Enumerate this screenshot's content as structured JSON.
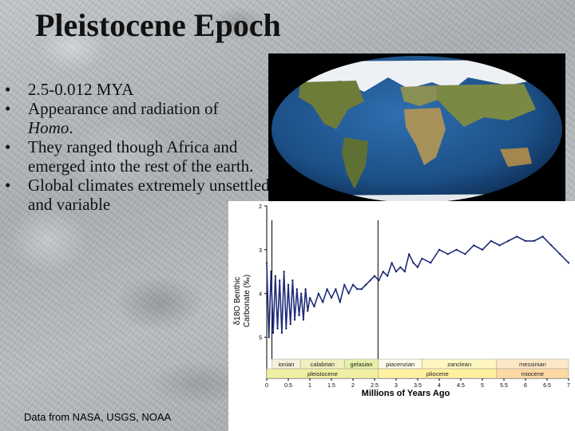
{
  "title": "Pleistocene Epoch",
  "bullets": [
    {
      "text": " 2.5-0.012 MYA"
    },
    {
      "text": " Appearance and radiation of",
      "text2": "Homo",
      "text3": "."
    },
    {
      "text": "They ranged though Africa and emerged into the rest of the earth."
    },
    {
      "text": "Global climates extremely unsettled and variable"
    }
  ],
  "bullet_char": "•",
  "caption": "Data from NASA, USGS, NOAA",
  "globe": {
    "ocean": "#1c4f86",
    "land": "#6e7c3a",
    "ice": "#f2f4f6"
  },
  "chart_data": {
    "type": "line",
    "xlabel": "Millions of Years Ago",
    "ylabel_line1": "δ18O Benthic",
    "ylabel_line2": "Carbonate (‰)",
    "x_ticks": [
      "0",
      "0.5",
      "1",
      "1.5",
      "2",
      "2.5",
      "3",
      "3.5",
      "4",
      "4.5",
      "5",
      "5.5",
      "6",
      "6.5",
      "7"
    ],
    "y_ticks": [
      "2",
      "3",
      "4",
      "5"
    ],
    "xlim": [
      0,
      7
    ],
    "ylim": [
      2,
      5.5
    ],
    "y_inverted": true,
    "vertical_lines": [
      0.12,
      2.58
    ],
    "stages": [
      {
        "name": "ionian",
        "start": 0.126,
        "end": 0.78,
        "color": "#f6f1dc"
      },
      {
        "name": "calabrian",
        "start": 0.78,
        "end": 1.8,
        "color": "#f2efbf"
      },
      {
        "name": "gelasian",
        "start": 1.8,
        "end": 2.59,
        "color": "#e6f0a8"
      },
      {
        "name": "piacenzian",
        "start": 2.59,
        "end": 3.6,
        "color": "#fdfbe6"
      },
      {
        "name": "zanclean",
        "start": 3.6,
        "end": 5.33,
        "color": "#fff7c2"
      },
      {
        "name": "messinian",
        "start": 5.33,
        "end": 7.0,
        "color": "#fde7c6"
      }
    ],
    "epochs": [
      {
        "name": "pleistocene",
        "start": 0.0,
        "end": 2.59,
        "color": "#f0eea3"
      },
      {
        "name": "pliocene",
        "start": 2.59,
        "end": 5.33,
        "color": "#fff0a0"
      },
      {
        "name": "miocene",
        "start": 5.33,
        "end": 7.0,
        "color": "#fcd9a2"
      }
    ],
    "series": [
      {
        "x": [
          0,
          0.05,
          0.1,
          0.15,
          0.2,
          0.25,
          0.3,
          0.35,
          0.4,
          0.45,
          0.5,
          0.55,
          0.6,
          0.65,
          0.7,
          0.75,
          0.8,
          0.85,
          0.9,
          0.95,
          1.0,
          1.1,
          1.2,
          1.3,
          1.4,
          1.5,
          1.6,
          1.7,
          1.8,
          1.9,
          2.0,
          2.1,
          2.2,
          2.3,
          2.4,
          2.5,
          2.6,
          2.7,
          2.8,
          2.9,
          3.0,
          3.1,
          3.2,
          3.3,
          3.4,
          3.5,
          3.6,
          3.8,
          4.0,
          4.2,
          4.4,
          4.6,
          4.8,
          5.0,
          5.2,
          5.4,
          5.6,
          5.8,
          6.0,
          6.2,
          6.4,
          6.6,
          6.8,
          7.0
        ],
        "y": [
          3.3,
          5.0,
          3.5,
          4.9,
          3.6,
          4.8,
          3.7,
          4.9,
          3.5,
          4.8,
          3.8,
          4.7,
          3.7,
          4.6,
          3.9,
          4.5,
          4.0,
          4.6,
          3.9,
          4.4,
          4.1,
          4.3,
          4.0,
          4.2,
          3.9,
          4.1,
          3.9,
          4.2,
          3.8,
          4.0,
          3.8,
          3.9,
          3.9,
          3.8,
          3.7,
          3.6,
          3.7,
          3.5,
          3.6,
          3.3,
          3.5,
          3.4,
          3.5,
          3.1,
          3.3,
          3.4,
          3.2,
          3.3,
          3.0,
          3.1,
          3.0,
          3.1,
          2.9,
          3.0,
          2.8,
          2.9,
          2.8,
          2.7,
          2.8,
          2.8,
          2.7,
          2.9,
          3.1,
          3.3
        ]
      }
    ]
  }
}
